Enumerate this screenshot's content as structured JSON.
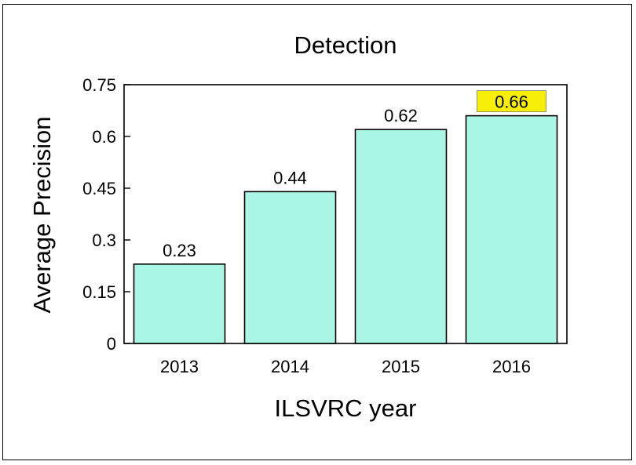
{
  "chart_data": {
    "type": "bar",
    "title": "Detection",
    "xlabel": "ILSVRC year",
    "ylabel": "Average Precision",
    "categories": [
      "2013",
      "2014",
      "2015",
      "2016"
    ],
    "values": [
      0.23,
      0.44,
      0.62,
      0.66
    ],
    "value_labels": [
      "0.23",
      "0.44",
      "0.62",
      "0.66"
    ],
    "ylim": [
      0,
      0.75
    ],
    "yticks": [
      0,
      0.15,
      0.3,
      0.45,
      0.6,
      0.75
    ],
    "ytick_labels": [
      "0",
      "0.15",
      "0.3",
      "0.45",
      "0.6",
      "0.75"
    ],
    "grid": false,
    "bar_color": "#a9f6e4",
    "highlight_color": "#f7ee0a",
    "highlight_index": 3
  }
}
